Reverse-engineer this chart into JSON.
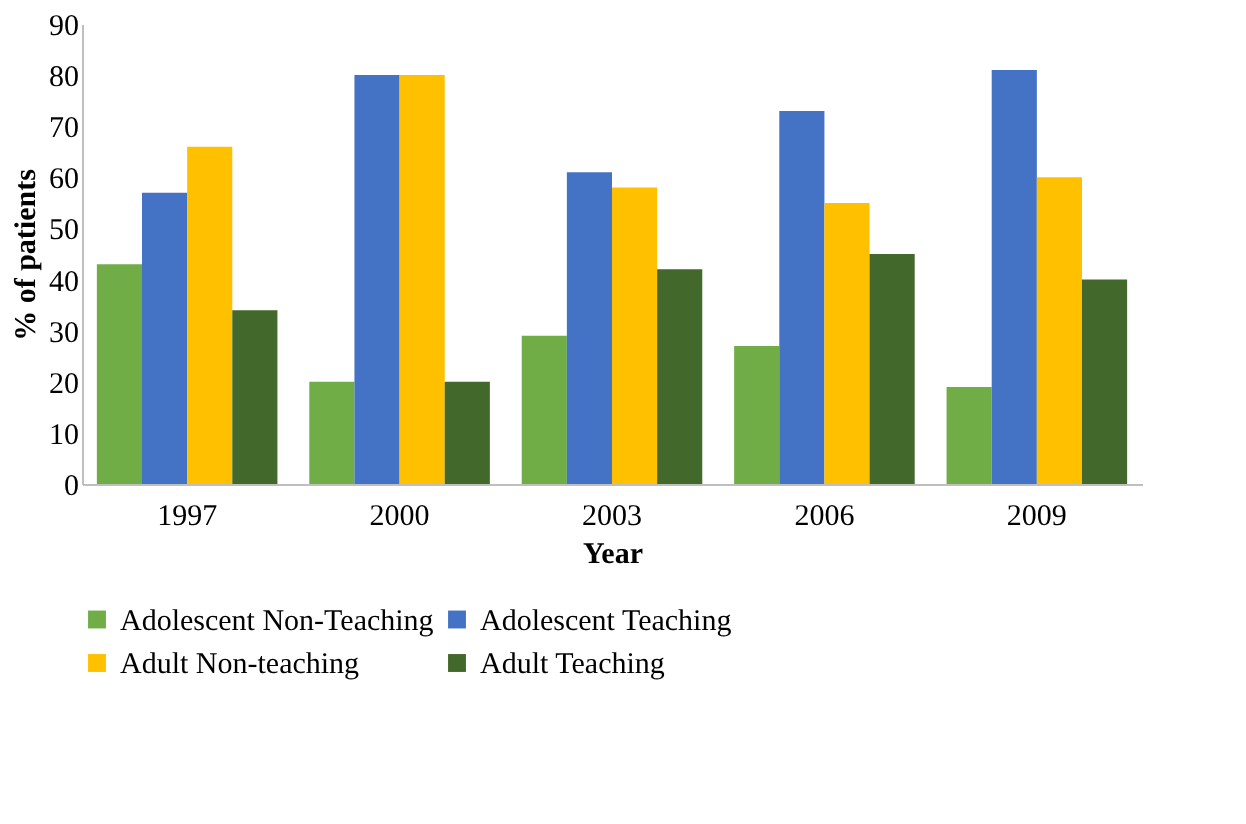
{
  "chart_data": {
    "type": "bar",
    "xlabel": "Year",
    "ylabel": "% of patients",
    "categories": [
      "1997",
      "2000",
      "2003",
      "2006",
      "2009"
    ],
    "series": [
      {
        "name": "Adolescent Non-Teaching",
        "color": "#70ad47",
        "values": [
          43,
          20,
          29,
          27,
          19
        ]
      },
      {
        "name": "Adolescent Teaching",
        "color": "#4472c4",
        "values": [
          57,
          80,
          61,
          73,
          81
        ]
      },
      {
        "name": "Adult Non-teaching",
        "color": "#ffc000",
        "values": [
          66,
          80,
          58,
          55,
          60
        ]
      },
      {
        "name": "Adult Teaching",
        "color": "#43682b",
        "values": [
          34,
          20,
          42,
          45,
          40
        ]
      }
    ],
    "ylim": [
      0,
      90
    ],
    "yticks": [
      0,
      10,
      20,
      30,
      40,
      50,
      60,
      70,
      80,
      90
    ],
    "grid": false,
    "legend": "bottom"
  }
}
